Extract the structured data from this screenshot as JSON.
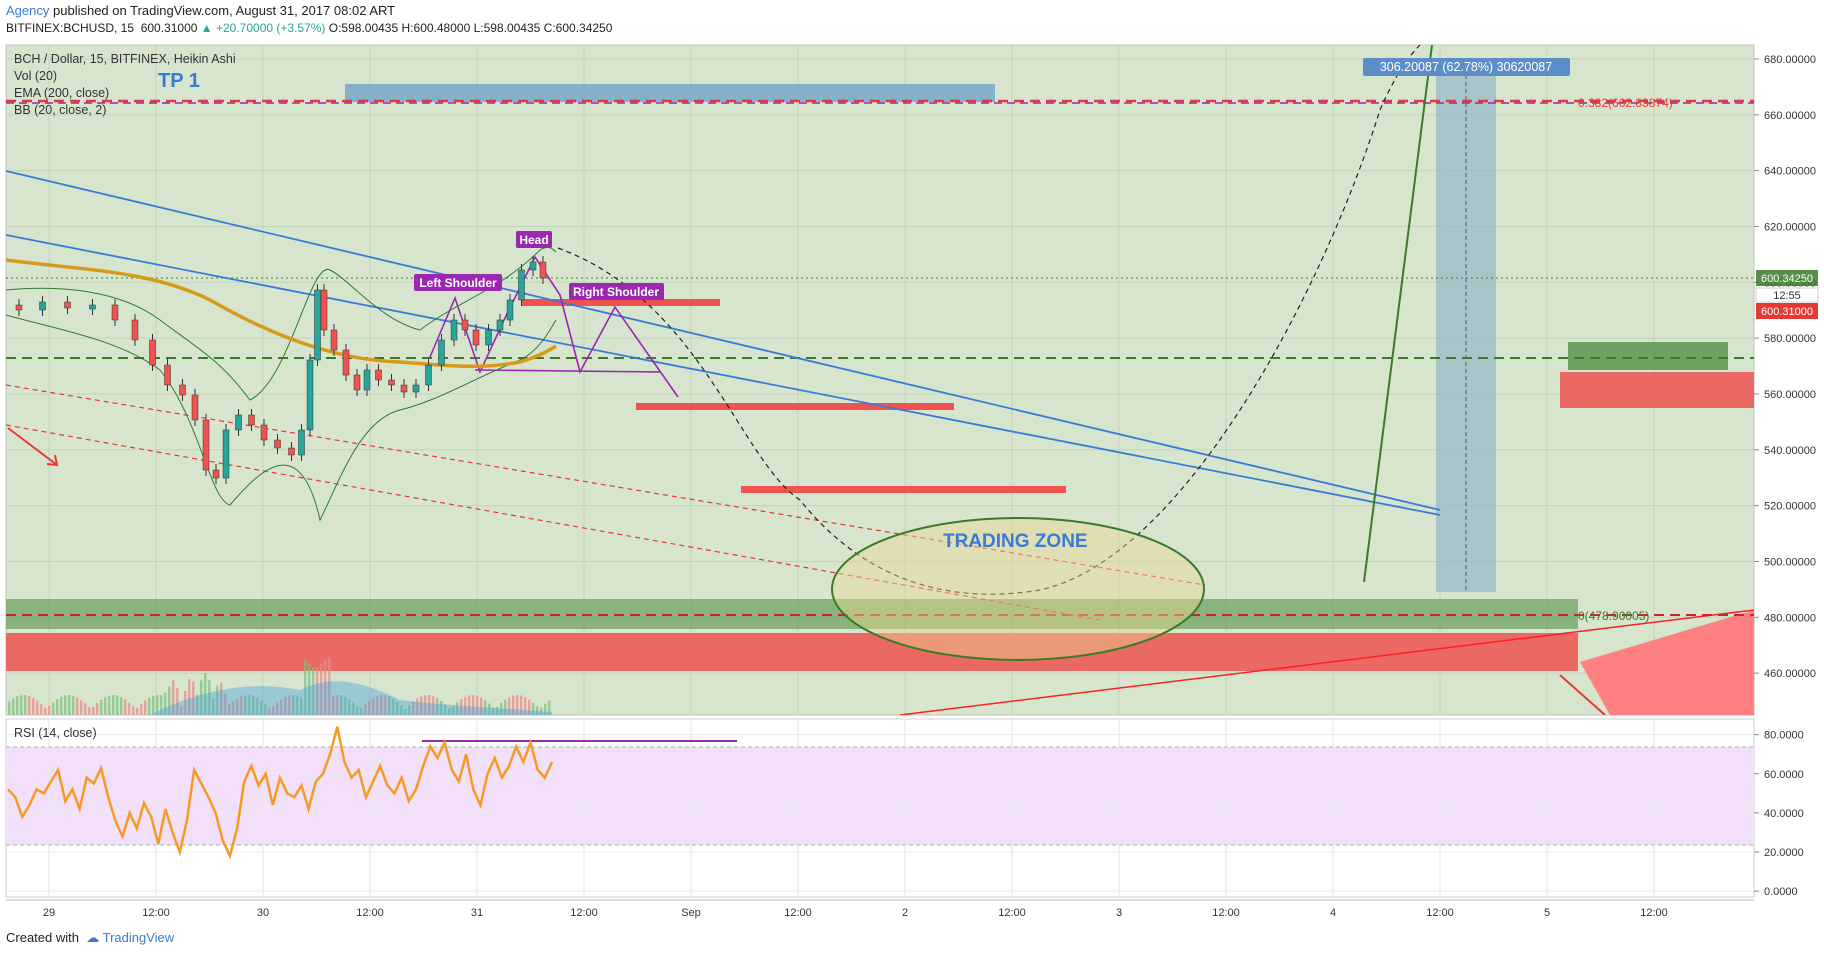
{
  "header": {
    "author": "Agency",
    "published": "published on TradingView.com, August 31, 2017 08:02 ART",
    "symbol": "BITFINEX:BCHUSD, 15",
    "last": "600.31000",
    "change": "▲ +20.70000 (+3.57%)",
    "open": "O:598.00435",
    "high": "H:600.48000",
    "low": "L:598.00435",
    "close": "C:600.34250"
  },
  "legend": {
    "title": "BCH / Dollar, 15, BITFINEX, Heikin Ashi",
    "vol": "Vol (20)",
    "ema": "EMA (200, close)",
    "bb": "BB (20, close, 2)",
    "rsi": "RSI (14, close)"
  },
  "footer": {
    "created": "Created with",
    "brand": "TradingView"
  },
  "colors": {
    "up": "#26a69a",
    "down": "#ef5350",
    "accent": "#3a7bd5",
    "pattern": "#9c27b0"
  },
  "chart_data": {
    "type": "line",
    "title": "BCH / Dollar, 15, BITFINEX, Heikin Ashi",
    "x_ticks": [
      "29",
      "12:00",
      "30",
      "12:00",
      "31",
      "12:00",
      "Sep",
      "12:00",
      "2",
      "12:00",
      "3",
      "12:00",
      "4",
      "12:00",
      "5",
      "12:00"
    ],
    "ylim": [
      445,
      685
    ],
    "y_ticks": [
      "680.00000",
      "660.00000",
      "640.00000",
      "620.00000",
      "600.00000",
      "580.00000",
      "560.00000",
      "540.00000",
      "520.00000",
      "500.00000",
      "480.00000",
      "460.00000"
    ],
    "price_labels": {
      "close": "600.34250",
      "timer": "12:55",
      "last": "600.31000"
    },
    "rsi": {
      "ylim": [
        -3,
        88
      ],
      "y_ticks": [
        "80.0000",
        "60.0000",
        "40.0000",
        "20.0000",
        "0.0000"
      ],
      "values": [
        52,
        48,
        38,
        44,
        52,
        50,
        56,
        62,
        46,
        52,
        42,
        58,
        55,
        63,
        48,
        36,
        28,
        40,
        32,
        45,
        38,
        24,
        42,
        30,
        20,
        36,
        62,
        55,
        48,
        40,
        26,
        18,
        32,
        56,
        64,
        54,
        60,
        44,
        58,
        50,
        48,
        54,
        42,
        56,
        60,
        70,
        84,
        66,
        58,
        62,
        48,
        56,
        64,
        54,
        50,
        58,
        46,
        52,
        64,
        74,
        68,
        76,
        62,
        56,
        70,
        52,
        44,
        60,
        68,
        58,
        64,
        74,
        66,
        76,
        62,
        58,
        66
      ]
    },
    "annotations": {
      "tp": "TP 1",
      "fib_top": "0.382(662.83874)",
      "fib_bottom": "0(478.90005)",
      "measure": "306.20087 (62.78%) 30620087",
      "head": "Head",
      "left_shoulder": "Left Shoulder",
      "right_shoulder": "Right Shoulder",
      "zone": "TRADING ZONE"
    }
  }
}
